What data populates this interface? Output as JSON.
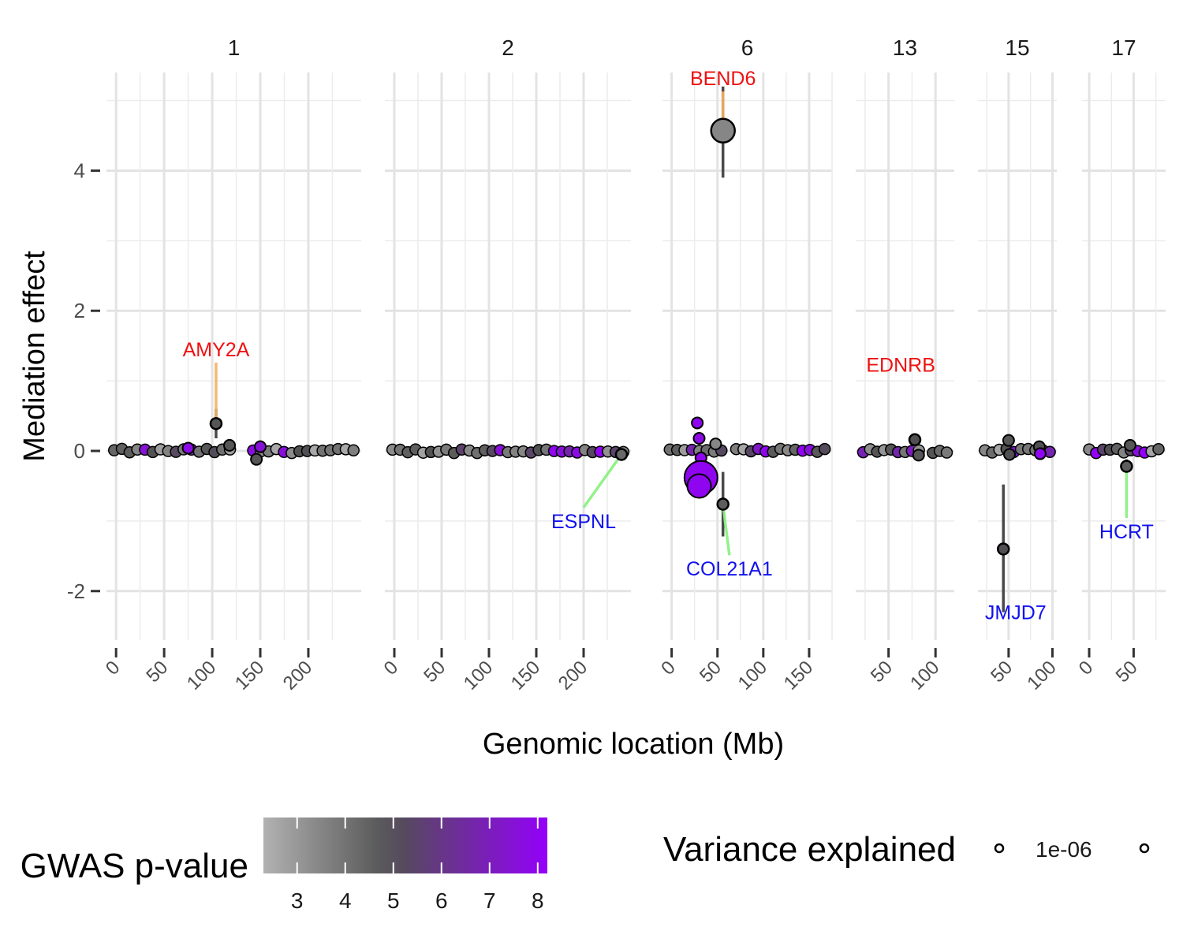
{
  "chart_data": {
    "type": "scatter",
    "xlabel": "Genomic location (Mb)",
    "ylabel": "Mediation effect",
    "ylim": [
      -2.7,
      5.4
    ],
    "yticks": [
      -2,
      0,
      2,
      4
    ],
    "grid": true,
    "panels": [
      {
        "label": "1",
        "xlim": [
          -10,
          255
        ],
        "xticks": [
          0,
          50,
          100,
          150,
          200
        ]
      },
      {
        "label": "2",
        "xlim": [
          -10,
          250
        ],
        "xticks": [
          0,
          50,
          100,
          150,
          200
        ]
      },
      {
        "label": "6",
        "xlim": [
          -10,
          175
        ],
        "xticks": [
          0,
          50,
          100,
          150
        ]
      },
      {
        "label": "13",
        "xlim": [
          15,
          120
        ],
        "xticks": [
          50,
          100
        ]
      },
      {
        "label": "15",
        "xlim": [
          15,
          105
        ],
        "xticks": [
          50,
          100
        ]
      },
      {
        "label": "17",
        "xlim": [
          -8,
          86
        ],
        "xticks": [
          0,
          50
        ]
      }
    ],
    "highlighted_genes": [
      {
        "gene": "AMY2A",
        "panel": "1",
        "x": 104,
        "y": 0.39,
        "ci": [
          0.18,
          0.6
        ],
        "color": "red",
        "label_x": 104,
        "label_y": 1.35,
        "size": "small",
        "pvalue": 4.8
      },
      {
        "gene": "BEND6",
        "panel": "6",
        "x": 56,
        "y": 4.57,
        "ci": [
          3.9,
          5.2
        ],
        "color": "red",
        "label_x": 56,
        "label_y": 5.22,
        "size": "medium",
        "pvalue": 3.5
      },
      {
        "gene": "EDNRB",
        "panel": "13",
        "x": 78,
        "y": 0.16,
        "ci": [
          0.05,
          0.25
        ],
        "color": "red",
        "label_x": 63,
        "label_y": 1.13,
        "size": "small",
        "pvalue": 5.0
      },
      {
        "gene": "ESPNL",
        "panel": "2",
        "x": 240,
        "y": -0.05,
        "ci": [
          -0.1,
          0.0
        ],
        "color": "blue",
        "label_x": 200,
        "label_y": -1.1,
        "size": "small",
        "pvalue": 4.3
      },
      {
        "gene": "COL21A1",
        "panel": "6",
        "x": 56,
        "y": -0.76,
        "ci": [
          -1.22,
          -0.3
        ],
        "color": "blue",
        "label_x": 63,
        "label_y": -1.78,
        "size": "small",
        "pvalue": 4.6
      },
      {
        "gene": "JMJD7",
        "panel": "15",
        "x": 44,
        "y": -1.4,
        "ci": [
          -2.3,
          -0.48
        ],
        "color": "blue",
        "label_x": 58,
        "label_y": -2.4,
        "size": "small",
        "pvalue": 5.0
      },
      {
        "gene": "HCRT",
        "panel": "17",
        "x": 42,
        "y": -0.22,
        "ci": [
          -0.3,
          -0.12
        ],
        "color": "blue",
        "label_x": 42,
        "label_y": -1.25,
        "size": "small",
        "pvalue": 4.6
      }
    ],
    "extra_points": [
      {
        "panel": "6",
        "x": 28,
        "y": 0.4,
        "pvalue": 8.0,
        "size": "small"
      },
      {
        "panel": "6",
        "x": 30,
        "y": 0.18,
        "pvalue": 7.8,
        "size": "small"
      },
      {
        "panel": "6",
        "x": 32,
        "y": -0.1,
        "pvalue": 8.0,
        "size": "small"
      },
      {
        "panel": "6",
        "x": 29,
        "y": -0.25,
        "pvalue": 8.0,
        "size": "small"
      },
      {
        "panel": "6",
        "x": 32,
        "y": -0.38,
        "pvalue": 8.0,
        "size": "large"
      },
      {
        "panel": "6",
        "x": 30,
        "y": -0.5,
        "pvalue": 8.0,
        "size": "medium"
      },
      {
        "panel": "6",
        "x": 48,
        "y": 0.1,
        "pvalue": 3.5,
        "size": "small"
      },
      {
        "panel": "1",
        "x": 118,
        "y": 0.08,
        "pvalue": 4.8,
        "size": "small"
      },
      {
        "panel": "1",
        "x": 146,
        "y": -0.12,
        "pvalue": 4.8,
        "size": "small"
      },
      {
        "panel": "1",
        "x": 150,
        "y": 0.06,
        "pvalue": 7.5,
        "size": "small"
      },
      {
        "panel": "1",
        "x": 75,
        "y": 0.04,
        "pvalue": 7.8,
        "size": "small"
      },
      {
        "panel": "13",
        "x": 82,
        "y": -0.06,
        "pvalue": 4.8,
        "size": "small"
      },
      {
        "panel": "15",
        "x": 50,
        "y": 0.15,
        "pvalue": 4.8,
        "size": "small"
      },
      {
        "panel": "15",
        "x": 51,
        "y": -0.05,
        "pvalue": 5.0,
        "size": "small"
      },
      {
        "panel": "15",
        "x": 85,
        "y": 0.06,
        "pvalue": 5.0,
        "size": "small"
      },
      {
        "panel": "15",
        "x": 86,
        "y": -0.04,
        "pvalue": 8.0,
        "size": "small"
      },
      {
        "panel": "17",
        "x": 46,
        "y": 0.08,
        "pvalue": 4.8,
        "size": "small"
      }
    ],
    "legend": {
      "color_title": "GWAS p-value",
      "color_ticks": [
        "3",
        "4",
        "5",
        "6",
        "7",
        "8"
      ],
      "color_range": [
        2.3,
        8.2
      ],
      "size_title": "Variance explained",
      "size_label": "1e-06",
      "placement": "bottom"
    }
  }
}
